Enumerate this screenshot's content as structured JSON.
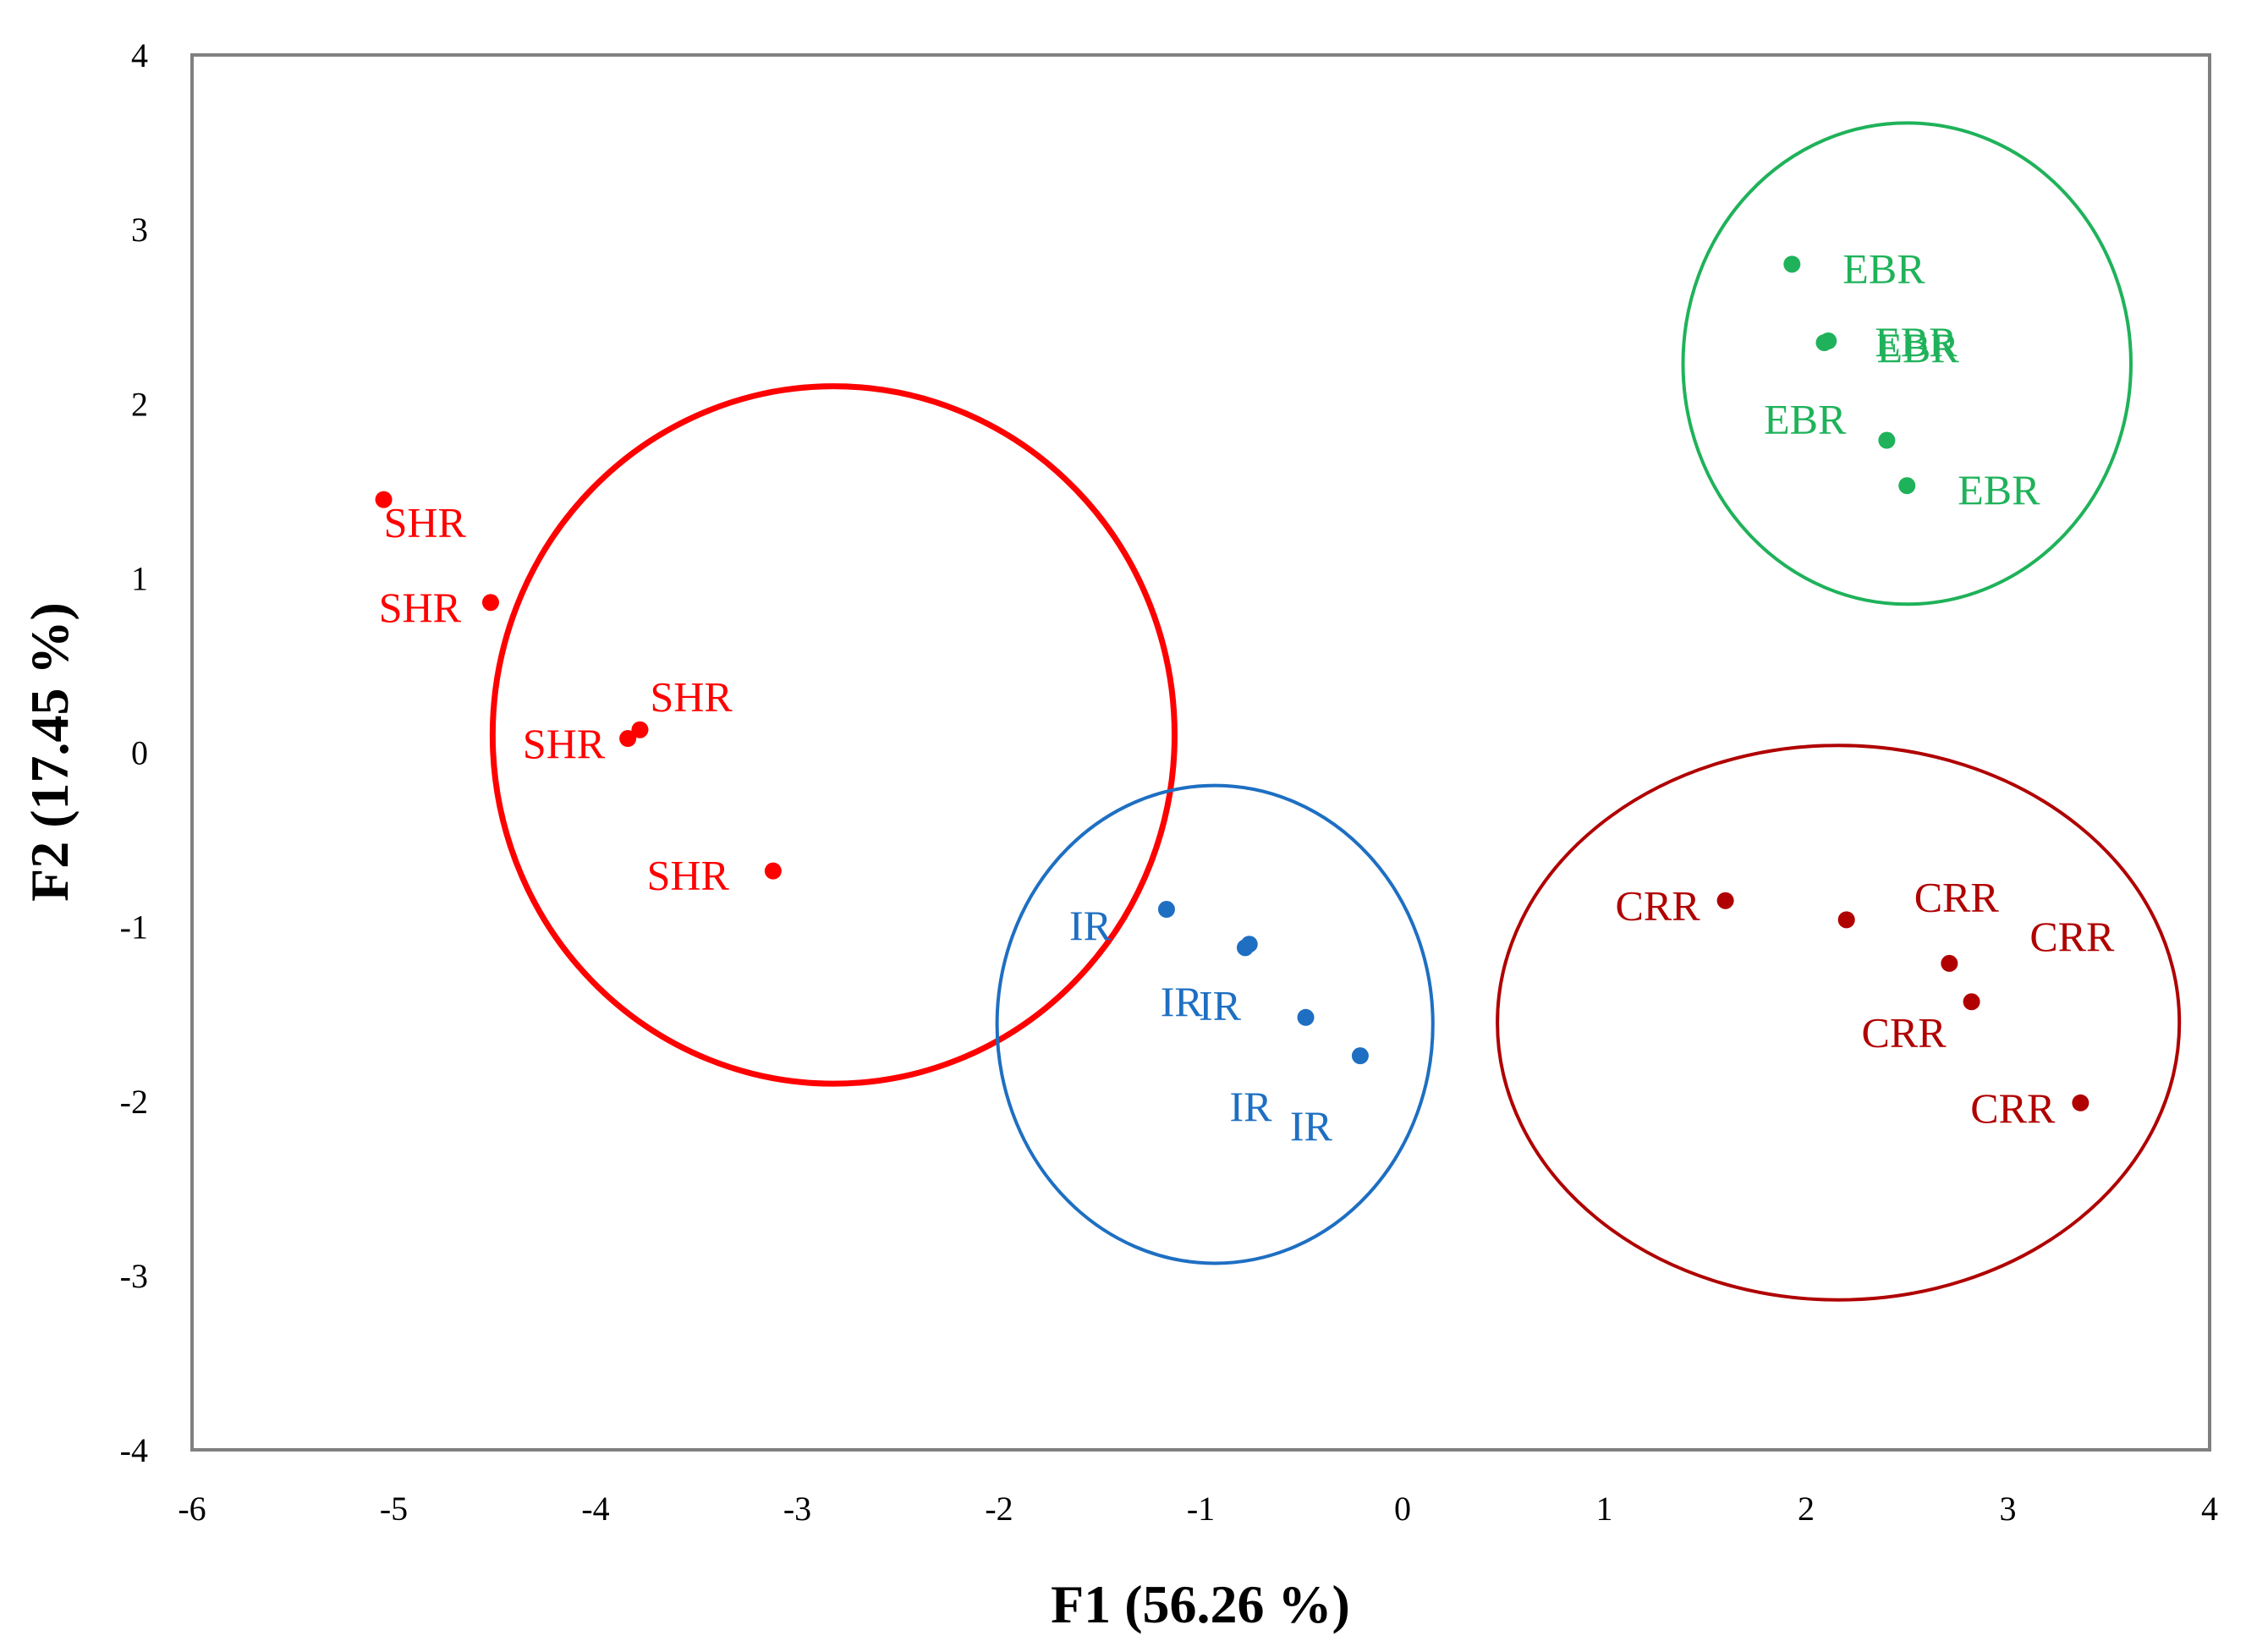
{
  "chart_data": {
    "type": "scatter",
    "title": "",
    "xlabel": "F1 (56.26 %)",
    "ylabel": "F2 (17.45 %)",
    "xlim": [
      -6,
      4
    ],
    "ylim": [
      -4,
      4
    ],
    "xticks": [
      -6,
      -5,
      -4,
      -3,
      -2,
      -1,
      0,
      1,
      2,
      3,
      4
    ],
    "yticks": [
      -4,
      -3,
      -2,
      -1,
      0,
      1,
      2,
      3,
      4
    ],
    "grid": false,
    "legend": "none",
    "series": [
      {
        "name": "SHR",
        "color": "#ff0000",
        "points": [
          {
            "x": -5.05,
            "y": 1.45,
            "label": "SHR"
          },
          {
            "x": -4.52,
            "y": 0.86,
            "label": "SHR"
          },
          {
            "x": -3.78,
            "y": 0.13,
            "label": "SHR"
          },
          {
            "x": -3.84,
            "y": 0.08,
            "label": "SHR"
          },
          {
            "x": -3.12,
            "y": -0.68,
            "label": "SHR"
          }
        ],
        "ellipse": {
          "cx": -2.82,
          "cy": 0.1,
          "rx": 1.69,
          "ry": 2.0
        }
      },
      {
        "name": "IR",
        "color": "#1e6fc2",
        "points": [
          {
            "x": -1.17,
            "y": -0.9,
            "label": "IR"
          },
          {
            "x": -0.76,
            "y": -1.1,
            "label": "IR"
          },
          {
            "x": -0.48,
            "y": -1.52,
            "label": "IR"
          },
          {
            "x": -0.21,
            "y": -1.74,
            "label": "IR"
          },
          {
            "x": -0.78,
            "y": -1.12,
            "label": "IR"
          }
        ],
        "ellipse": {
          "cx": -0.93,
          "cy": -1.56,
          "rx": 1.08,
          "ry": 1.37
        }
      },
      {
        "name": "EBR",
        "color": "#1fb25a",
        "points": [
          {
            "x": 1.93,
            "y": 2.8,
            "label": "EBR"
          },
          {
            "x": 2.11,
            "y": 2.36,
            "label": "EBR"
          },
          {
            "x": 2.4,
            "y": 1.79,
            "label": "EBR"
          },
          {
            "x": 2.5,
            "y": 1.53,
            "label": "EBR"
          },
          {
            "x": 2.09,
            "y": 2.35,
            "label": "EBR"
          }
        ],
        "ellipse": {
          "cx": 2.5,
          "cy": 2.23,
          "rx": 1.11,
          "ry": 1.38
        }
      },
      {
        "name": "CRR",
        "color": "#b00000",
        "points": [
          {
            "x": 1.6,
            "y": -0.85,
            "label": "CRR"
          },
          {
            "x": 2.2,
            "y": -0.96,
            "label": "CRR"
          },
          {
            "x": 2.71,
            "y": -1.21,
            "label": "CRR"
          },
          {
            "x": 2.82,
            "y": -1.43,
            "label": "CRR"
          },
          {
            "x": 3.36,
            "y": -2.01,
            "label": "CRR"
          }
        ],
        "ellipse": {
          "cx": 2.16,
          "cy": -1.55,
          "rx": 1.69,
          "ry": 1.59
        }
      }
    ]
  }
}
